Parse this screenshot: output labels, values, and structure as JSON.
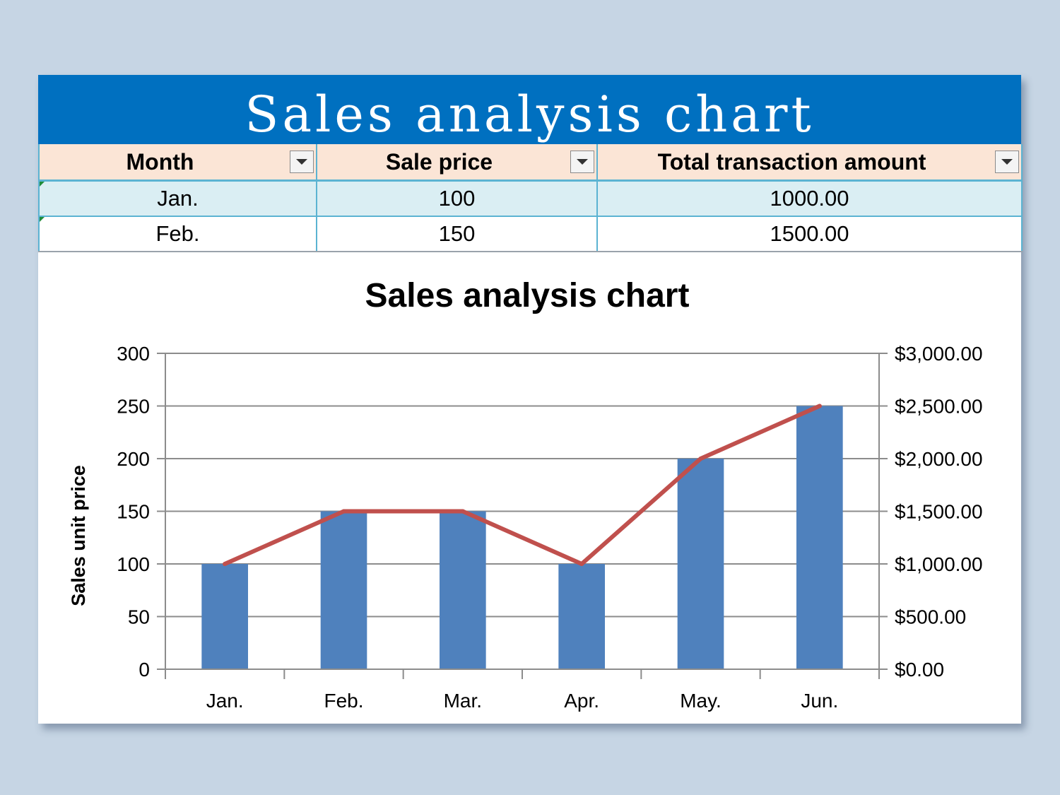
{
  "banner": {
    "title": "Sales analysis chart"
  },
  "table": {
    "headers": [
      "Month",
      "Sale price",
      "Total transaction amount"
    ],
    "rows": [
      [
        "Jan.",
        "100",
        "1000.00"
      ],
      [
        "Feb.",
        "150",
        "1500.00"
      ]
    ]
  },
  "colors": {
    "banner": "#0070c0",
    "header_fill": "#fbe5d6",
    "row_fill": "#daeef3",
    "table_border": "#5bb3d2",
    "bar": "#4f81bd",
    "line": "#c0504d",
    "background": "#c6d5e4"
  },
  "chart_data": {
    "type": "bar",
    "title": "Sales analysis chart",
    "categories": [
      "Jan.",
      "Feb.",
      "Mar.",
      "Apr.",
      "May.",
      "Jun."
    ],
    "series": [
      {
        "type": "bar",
        "axis": "left",
        "values": [
          100,
          150,
          150,
          100,
          200,
          250
        ]
      },
      {
        "type": "line",
        "axis": "right",
        "values": [
          1000,
          1500,
          1500,
          1000,
          2000,
          2500
        ]
      }
    ],
    "ylabel": "Sales unit price",
    "ylim": [
      0,
      300
    ],
    "yticks": [
      "0",
      "50",
      "100",
      "150",
      "200",
      "250",
      "300"
    ],
    "y2lim": [
      0,
      3000
    ],
    "y2ticks": [
      "$0.00",
      "$500.00",
      "$1,000.00",
      "$1,500.00",
      "$2,000.00",
      "$2,500.00",
      "$3,000.00"
    ],
    "grid": true,
    "legend": "none"
  }
}
